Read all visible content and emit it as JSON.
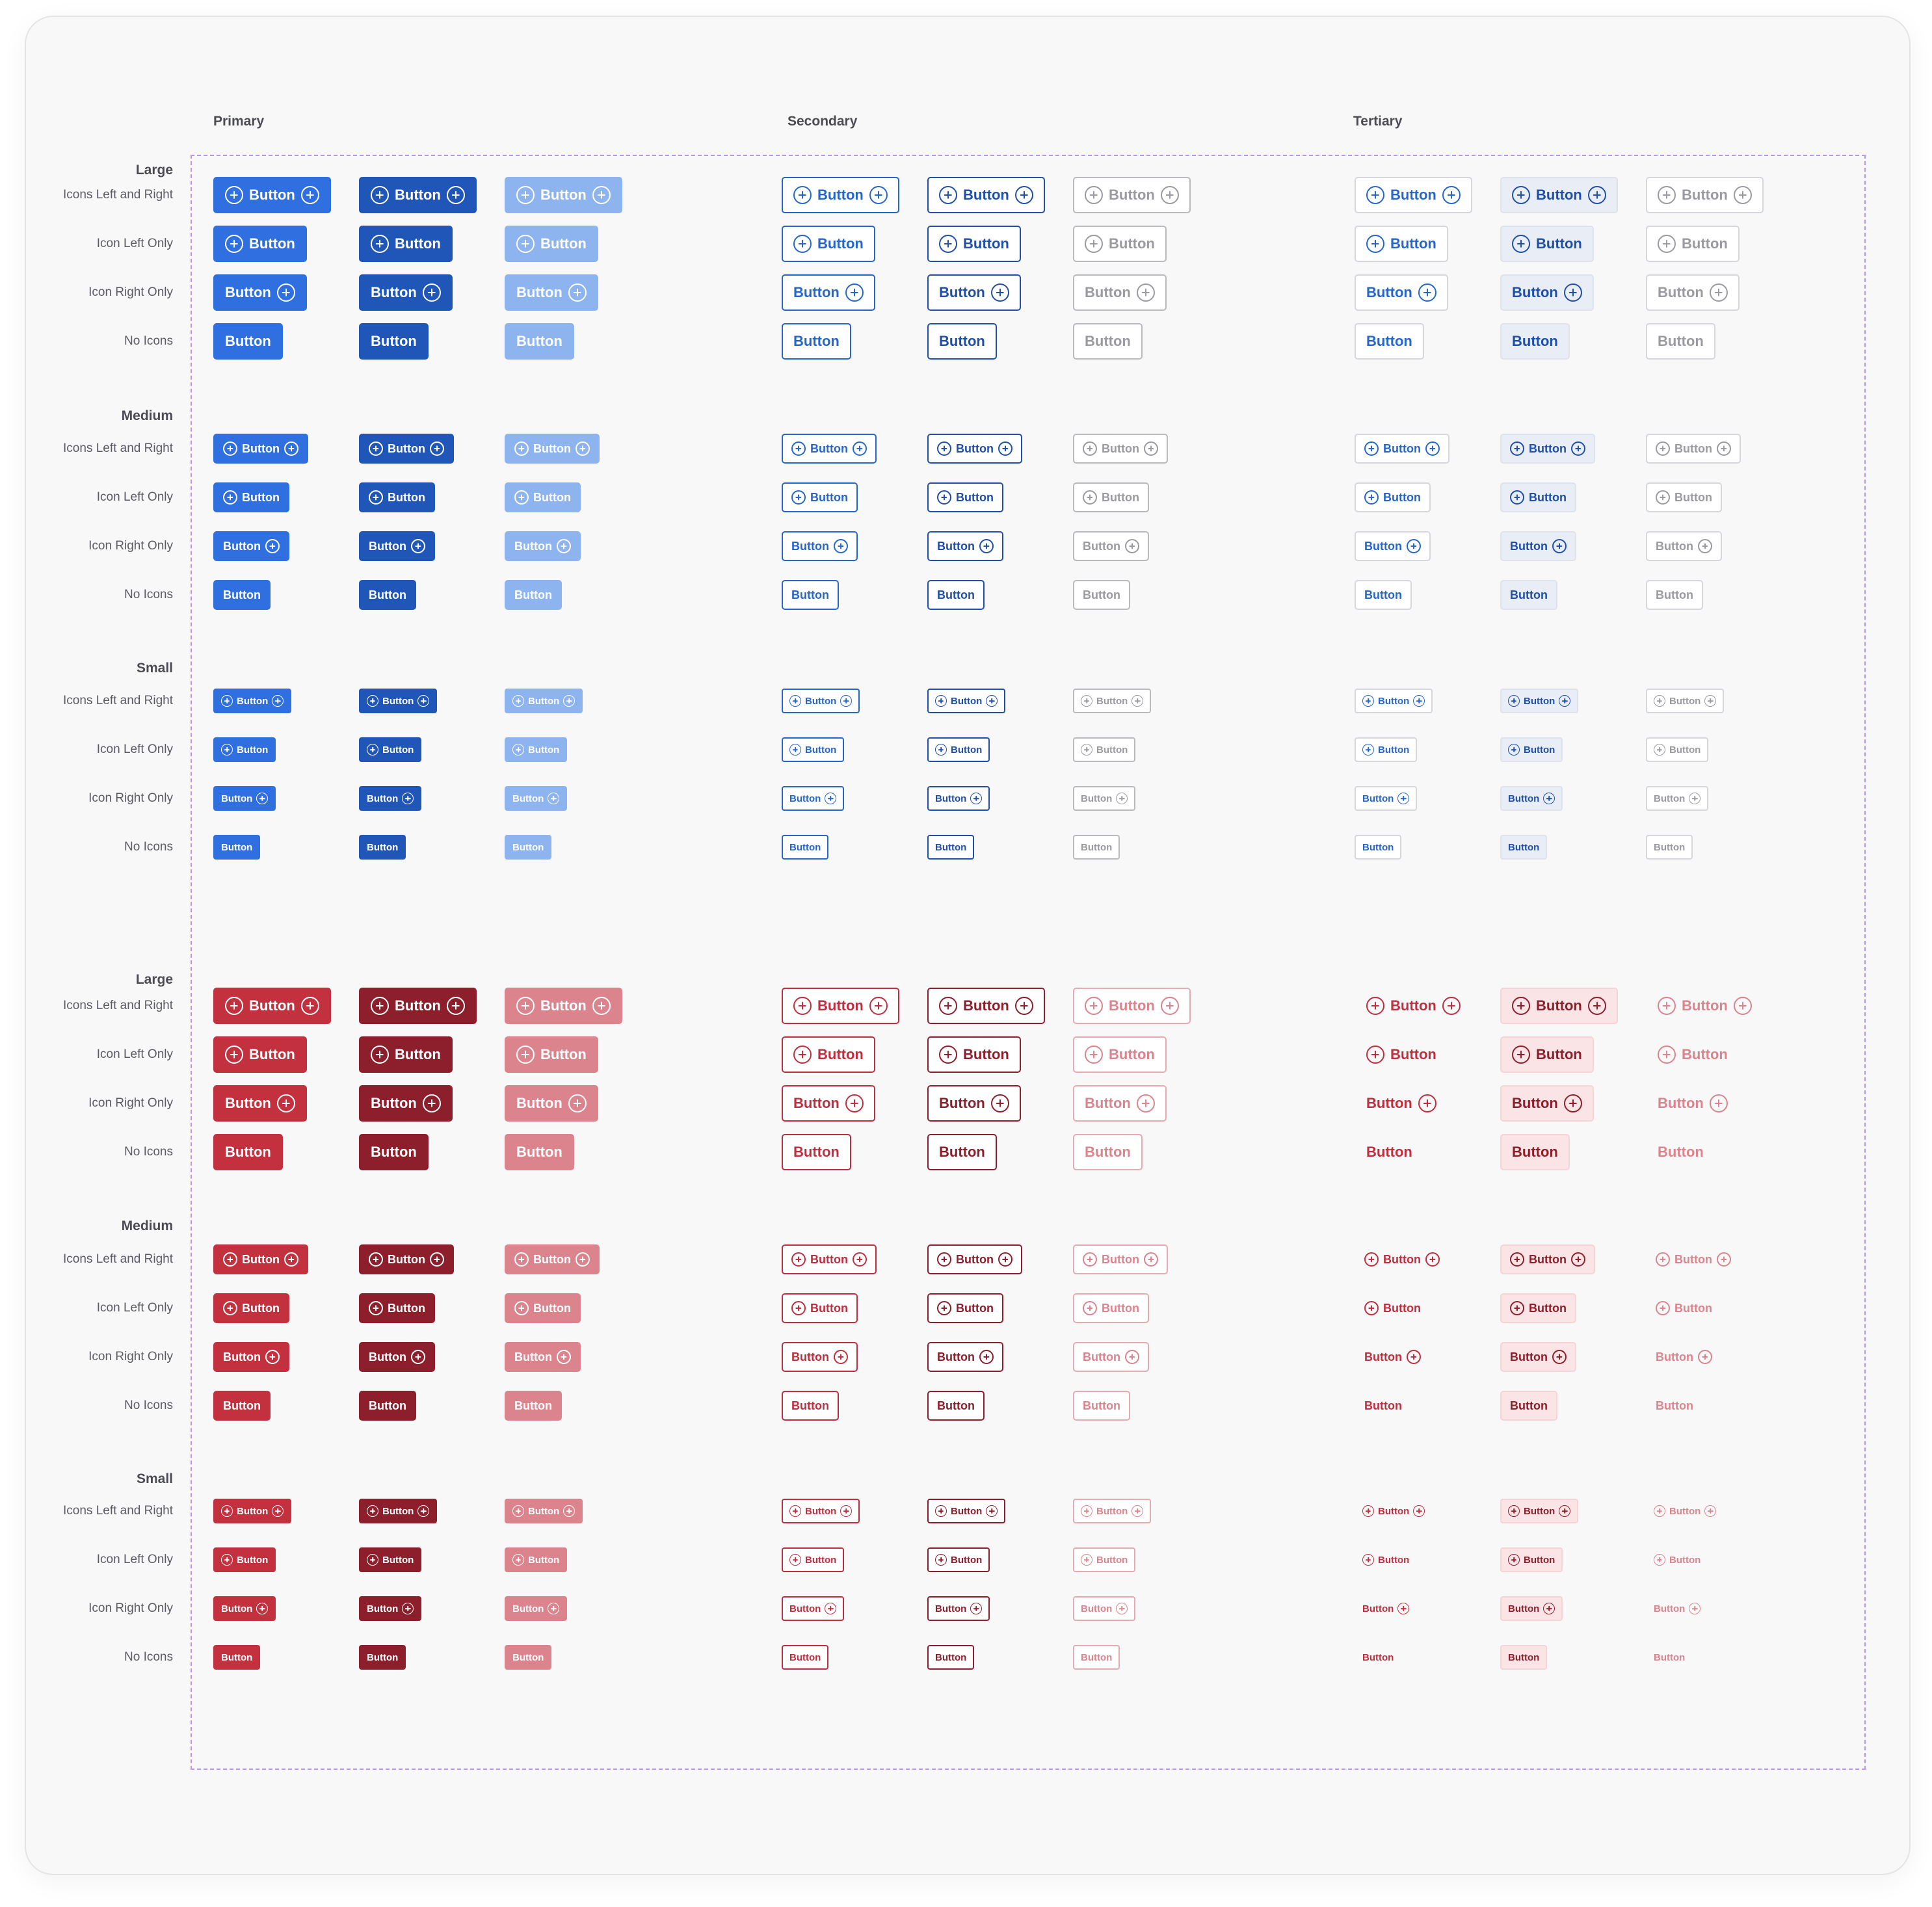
{
  "columns": {
    "primary": "Primary",
    "secondary": "Secondary",
    "tertiary": "Tertiary"
  },
  "size_labels": {
    "large": "Large",
    "medium": "Medium",
    "small": "Small"
  },
  "row_labels": {
    "icons_left_right": "Icons Left and Right",
    "icon_left_only": "Icon Left Only",
    "icon_right_only": "Icon Right Only",
    "no_icons": "No Icons"
  },
  "button_label": "Button",
  "icon_name": "plus-circle-icon",
  "colors": {
    "blue_primary": "#2f6fdf",
    "blue_primary_hover": "#1f56b8",
    "blue_primary_disabled": "#8db4ef",
    "blue_text": "#2566cc",
    "blue_text_dark": "#1f4fa8",
    "blue_tertiary_hover_bg": "#e8edf6",
    "red_primary": "#c3313f",
    "red_primary_hover": "#8c1f2b",
    "red_primary_disabled": "#db848d",
    "red_text": "#c02e3e",
    "red_text_dark": "#8c1f2b",
    "red_tertiary_hover_bg": "#fbe4e6",
    "disabled_gray_text": "#9a9aa0",
    "frame_dashed": "#b597ec"
  }
}
